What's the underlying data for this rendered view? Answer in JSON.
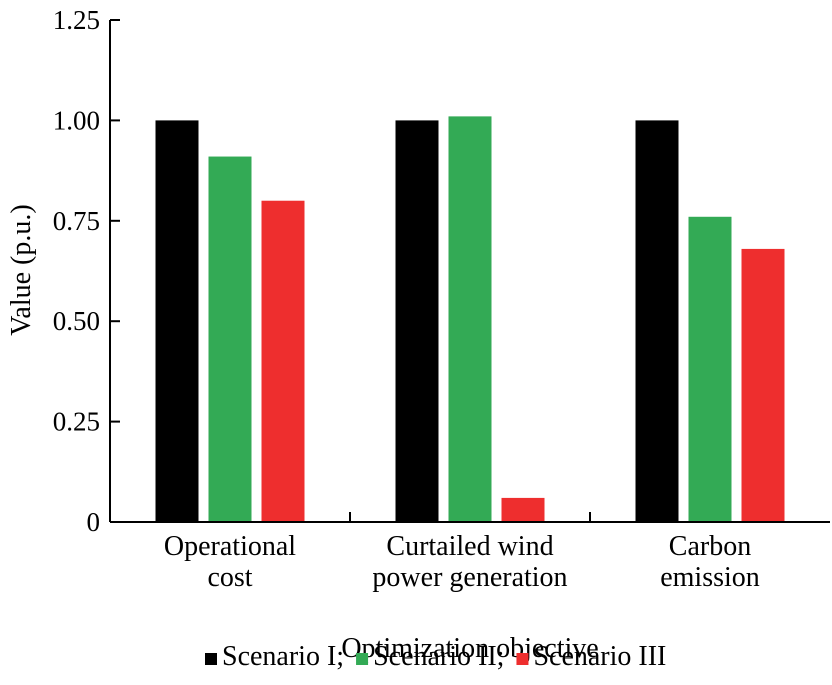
{
  "chart_data": {
    "type": "bar",
    "title": "",
    "xlabel": "Optimization objective",
    "ylabel": "Value (p.u.)",
    "ylim": [
      0,
      1.25
    ],
    "yticks": [
      {
        "value": 0,
        "label": "0"
      },
      {
        "value": 0.25,
        "label": "0.25"
      },
      {
        "value": 0.5,
        "label": "0.50"
      },
      {
        "value": 0.75,
        "label": "0.75"
      },
      {
        "value": 1.0,
        "label": "1.00"
      },
      {
        "value": 1.25,
        "label": "1.25"
      }
    ],
    "categories": [
      [
        "Operational",
        "cost"
      ],
      [
        "Curtailed wind",
        "power generation"
      ],
      [
        "Carbon",
        "emission"
      ]
    ],
    "series": [
      {
        "name": "Scenario I",
        "legend_label": "Scenario I;",
        "color": "#000000",
        "values": [
          1.0,
          1.0,
          1.0
        ]
      },
      {
        "name": "Scenario II",
        "legend_label": "Scenario II;",
        "color": "#33aa55",
        "values": [
          0.91,
          1.01,
          0.76
        ]
      },
      {
        "name": "Scenario III",
        "legend_label": "Scenario III",
        "color": "#ee2e2e",
        "values": [
          0.8,
          0.06,
          0.68
        ]
      }
    ],
    "grid": false,
    "legend_position": "bottom-center"
  }
}
